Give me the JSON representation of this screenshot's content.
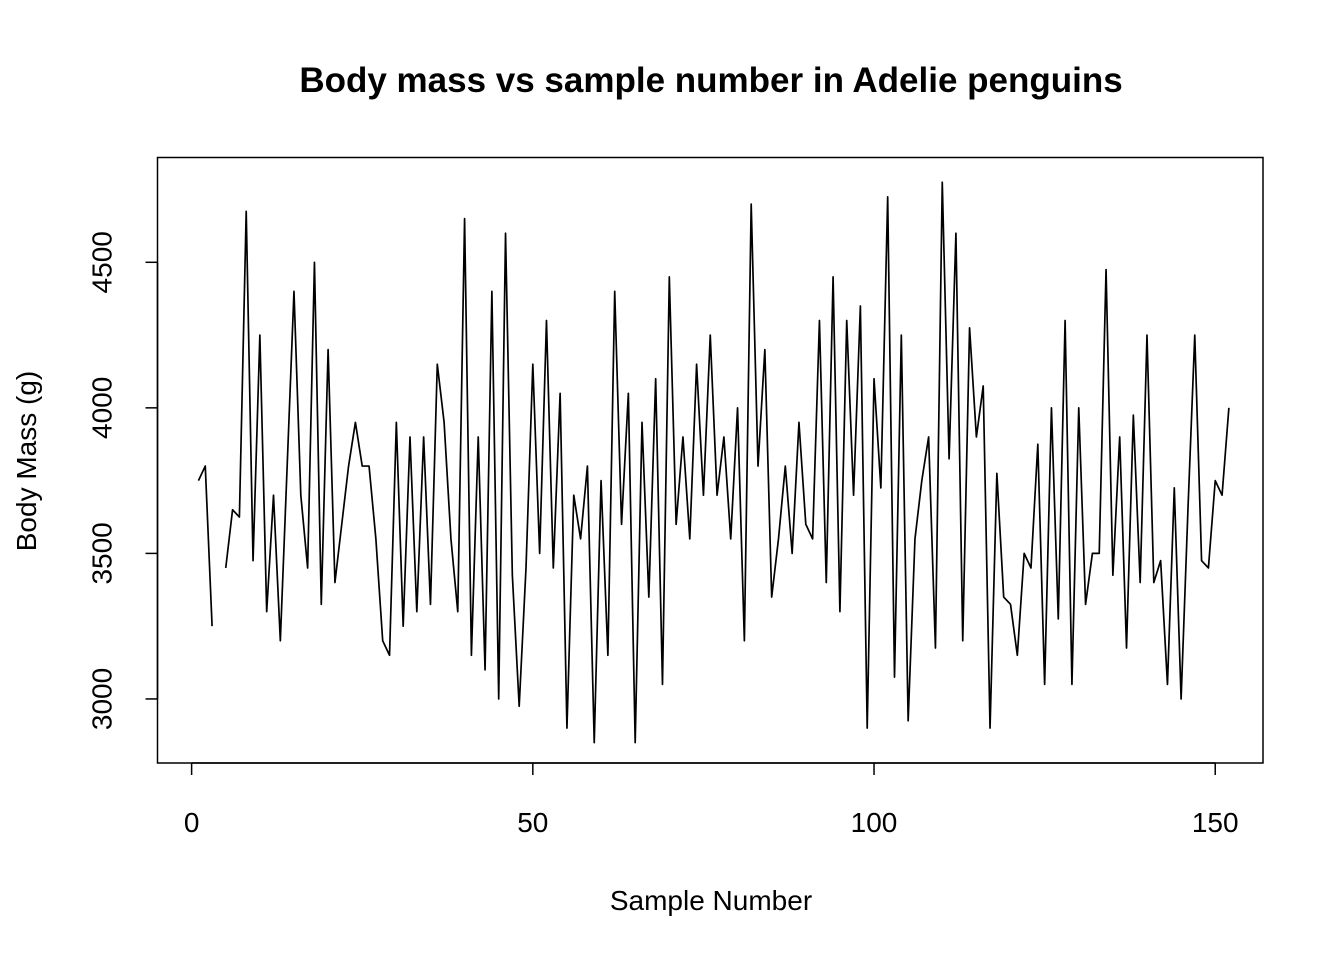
{
  "chart_data": {
    "type": "line",
    "title": "Body mass vs sample number in Adelie penguins",
    "xlabel": "Sample Number",
    "ylabel": "Body Mass (g)",
    "xlim": [
      -5,
      157
    ],
    "ylim": [
      2780,
      4860
    ],
    "xticks": [
      0,
      50,
      100,
      150
    ],
    "yticks": [
      3000,
      3500,
      4000,
      4500
    ],
    "grid": false,
    "legend": "none",
    "series": [
      {
        "color": "#000000",
        "values": [
          3750,
          3800,
          3250,
          null,
          3450,
          3650,
          3625,
          4675,
          3475,
          4250,
          3300,
          3700,
          3200,
          3800,
          4400,
          3700,
          3450,
          4500,
          3325,
          4200,
          3400,
          3600,
          3800,
          3950,
          3800,
          3800,
          3550,
          3200,
          3150,
          3950,
          3250,
          3900,
          3300,
          3900,
          3325,
          4150,
          3950,
          3550,
          3300,
          4650,
          3150,
          3900,
          3100,
          4400,
          3000,
          4600,
          3425,
          2975,
          3450,
          4150,
          3500,
          4300,
          3450,
          4050,
          2900,
          3700,
          3550,
          3800,
          2850,
          3750,
          3150,
          4400,
          3600,
          4050,
          2850,
          3950,
          3350,
          4100,
          3050,
          4450,
          3600,
          3900,
          3550,
          4150,
          3700,
          4250,
          3700,
          3900,
          3550,
          4000,
          3200,
          4700,
          3800,
          4200,
          3350,
          3550,
          3800,
          3500,
          3950,
          3600,
          3550,
          4300,
          3400,
          4450,
          3300,
          4300,
          3700,
          4350,
          2900,
          4100,
          3725,
          4725,
          3075,
          4250,
          2925,
          3550,
          3750,
          3900,
          3175,
          4775,
          3825,
          4600,
          3200,
          4275,
          3900,
          4075,
          2900,
          3775,
          3350,
          3325,
          3150,
          3500,
          3450,
          3875,
          3050,
          4000,
          3275,
          4300,
          3050,
          4000,
          3325,
          3500,
          3500,
          4475,
          3425,
          3900,
          3175,
          3975,
          3400,
          4250,
          3400,
          3475,
          3050,
          3725,
          3000,
          3650,
          4250,
          3475,
          3450,
          3750,
          3700,
          4000
        ]
      }
    ]
  }
}
